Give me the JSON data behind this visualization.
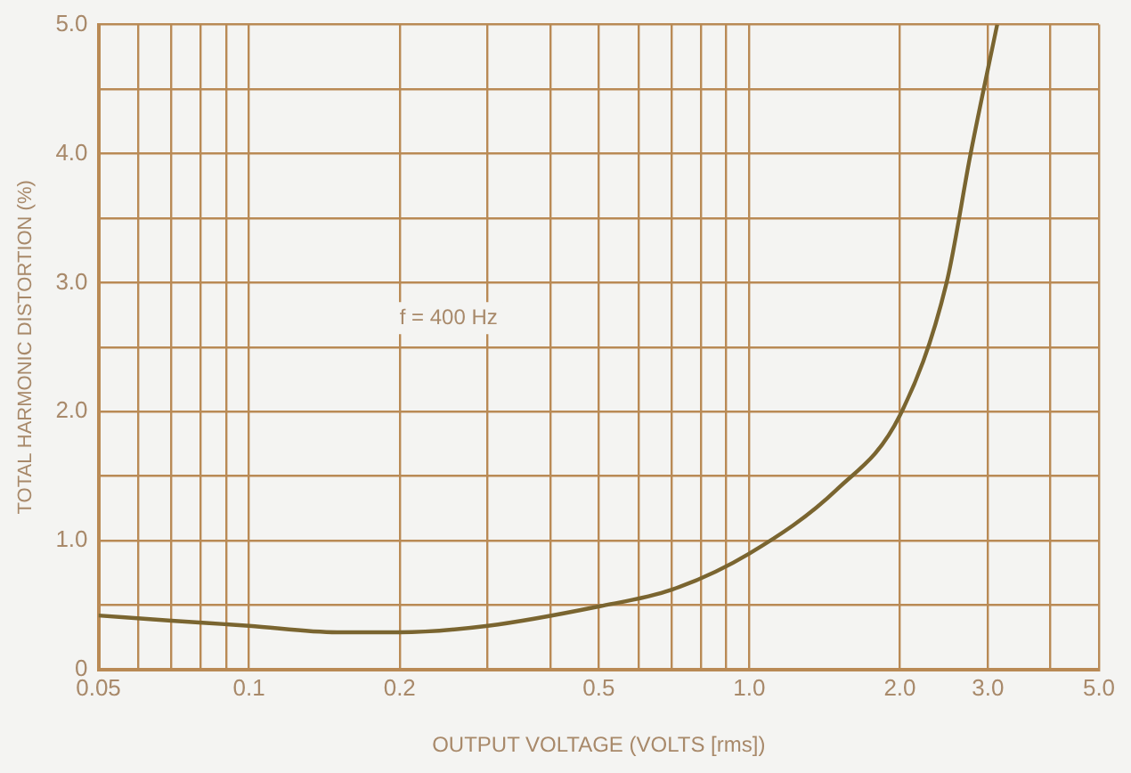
{
  "chart_data": {
    "type": "line",
    "xlabel": "OUTPUT VOLTAGE (VOLTS [rms])",
    "ylabel": "TOTAL HARMONIC DISTORTION (%)",
    "annotations": [
      "f = 400 Hz"
    ],
    "log": "x",
    "xlim": [
      0.05,
      5.0
    ],
    "ylim": [
      0,
      5.0
    ],
    "xticks": [
      {
        "value": 0.05,
        "label": "0.05"
      },
      {
        "value": 0.06,
        "label": null
      },
      {
        "value": 0.07,
        "label": null
      },
      {
        "value": 0.08,
        "label": null
      },
      {
        "value": 0.09,
        "label": null
      },
      {
        "value": 0.1,
        "label": "0.1"
      },
      {
        "value": 0.2,
        "label": "0.2"
      },
      {
        "value": 0.3,
        "label": null
      },
      {
        "value": 0.4,
        "label": null
      },
      {
        "value": 0.5,
        "label": "0.5"
      },
      {
        "value": 0.6,
        "label": null
      },
      {
        "value": 0.7,
        "label": null
      },
      {
        "value": 0.8,
        "label": null
      },
      {
        "value": 0.9,
        "label": null
      },
      {
        "value": 1,
        "label": "1.0"
      },
      {
        "value": 2,
        "label": "2.0"
      },
      {
        "value": 3,
        "label": "3.0"
      },
      {
        "value": 4,
        "label": null
      },
      {
        "value": 5,
        "label": "5.0"
      }
    ],
    "yticks": [
      0,
      {
        "value": 0.5,
        "label": null
      },
      {
        "value": 1,
        "label": "1.0"
      },
      {
        "value": 1.5,
        "label": null
      },
      {
        "value": 2,
        "label": "2.0"
      },
      {
        "value": 2.5,
        "label": null
      },
      {
        "value": 3,
        "label": "3.0"
      },
      {
        "value": 3.5,
        "label": null
      },
      {
        "value": 4,
        "label": "4.0"
      },
      {
        "value": 4.5,
        "label": null
      },
      {
        "value": 5,
        "label": "5.0"
      }
    ],
    "grid": true,
    "legend": false,
    "marker": "none",
    "line_style": "solid",
    "series": [
      {
        "color": "#7a6530",
        "x": [
          0.05,
          0.07,
          0.1,
          0.15,
          0.2,
          0.3,
          0.5,
          0.7,
          1.0,
          1.5,
          2.0,
          2.48,
          2.77,
          3.13
        ],
        "values": [
          0.42,
          0.38,
          0.34,
          0.29,
          0.29,
          0.34,
          0.49,
          0.62,
          0.9,
          1.4,
          1.97,
          3.0,
          4.0,
          5.0
        ]
      }
    ]
  }
}
